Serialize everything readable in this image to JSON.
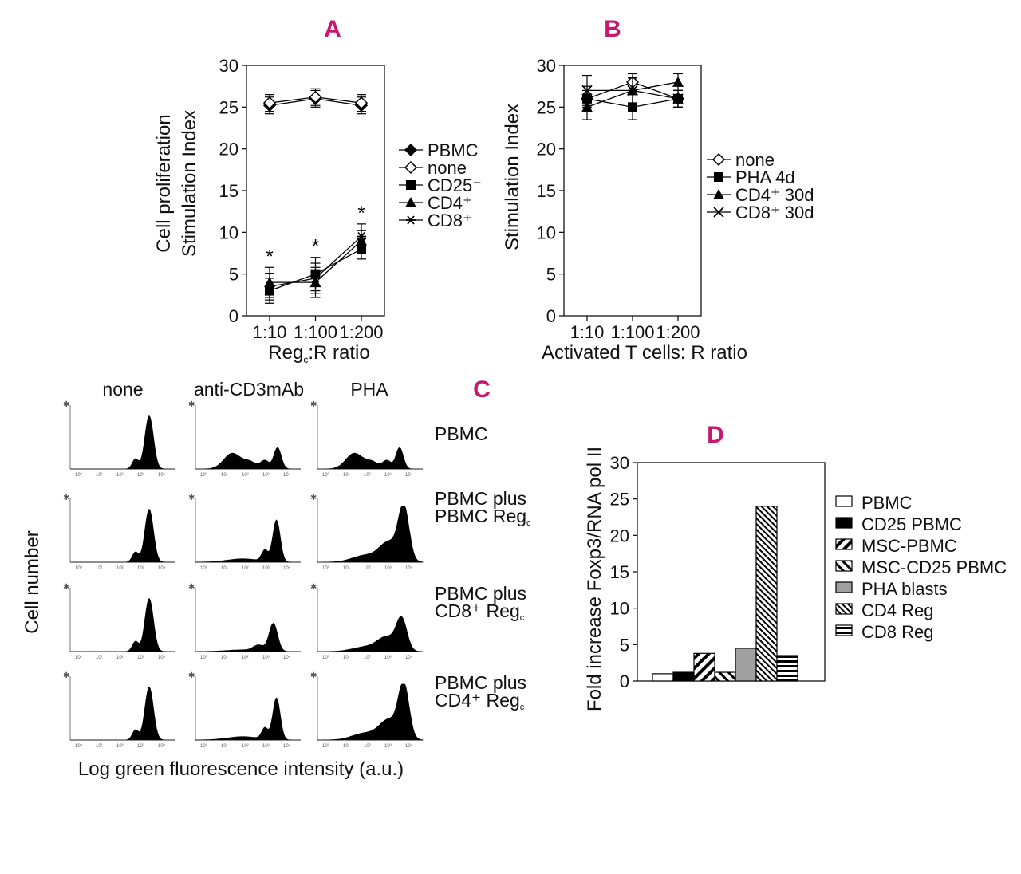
{
  "panels": {
    "A": {
      "letter": "A",
      "ylabel_line1": "Cell proliferation",
      "ylabel_line2": "Stimulation Index",
      "xlabel": "Reg",
      "xlabel_sub": "c",
      "xlabel_tail": ":R ratio",
      "significance_mark": "*"
    },
    "B": {
      "letter": "B",
      "ylabel": "Stimulation Index",
      "xlabel": "Activated T cells: R ratio"
    },
    "C": {
      "letter": "C",
      "columns": [
        "none",
        "anti-CD3mAb",
        "PHA"
      ],
      "rows": [
        {
          "line1": "PBMC",
          "line2": "",
          "sub": ""
        },
        {
          "line1": "PBMC plus",
          "line2": "PBMC Reg",
          "sub": "c"
        },
        {
          "line1": "PBMC plus",
          "line2": "CD8⁺ Reg",
          "sub": "c"
        },
        {
          "line1": "PBMC plus",
          "line2": "CD4⁺ Reg",
          "sub": "c"
        }
      ],
      "ylabel": "Cell number",
      "xlabel": "Log green fluorescence intensity (a.u.)",
      "axis_tick_labels": [
        "10⁰",
        "10¹",
        "10²",
        "10³",
        "10⁴"
      ]
    },
    "D": {
      "letter": "D",
      "ylabel": "Fold increase Foxp3/RNA pol II"
    }
  },
  "chart_data": [
    {
      "id": "A",
      "type": "line",
      "title": "A",
      "categories": [
        "1:10",
        "1:100",
        "1:200"
      ],
      "xlabel": "Regc:R ratio",
      "ylabel": "Cell proliferation Stimulation Index",
      "ylim": [
        0,
        30
      ],
      "yticks": [
        0,
        5,
        10,
        15,
        20,
        25,
        30
      ],
      "series": [
        {
          "name": "PBMC",
          "marker": "diamond-filled",
          "values": [
            25.2,
            26.0,
            25.2
          ],
          "errors": [
            1.0,
            1.0,
            1.0
          ]
        },
        {
          "name": "none",
          "marker": "diamond-open",
          "values": [
            25.5,
            26.2,
            25.5
          ],
          "errors": [
            1.0,
            1.0,
            1.0
          ]
        },
        {
          "name": "CD25⁻",
          "marker": "square",
          "values": [
            3.0,
            5.0,
            8.0
          ],
          "errors": [
            1.5,
            2.0,
            1.2
          ]
        },
        {
          "name": "CD4⁺",
          "marker": "triangle",
          "values": [
            4.0,
            4.0,
            9.0
          ],
          "errors": [
            1.8,
            1.8,
            1.2
          ]
        },
        {
          "name": "CD8⁺",
          "marker": "star",
          "values": [
            3.5,
            4.5,
            9.5
          ],
          "errors": [
            1.6,
            1.8,
            1.5
          ]
        }
      ],
      "annotations": [
        {
          "category": "1:10",
          "text": "*"
        },
        {
          "category": "1:100",
          "text": "*"
        },
        {
          "category": "1:200",
          "text": "*"
        }
      ],
      "legend": "right"
    },
    {
      "id": "B",
      "type": "line",
      "title": "B",
      "categories": [
        "1:10",
        "1:100",
        "1:200"
      ],
      "xlabel": "Activated T cells: R ratio",
      "ylabel": "Stimulation Index",
      "ylim": [
        0,
        30
      ],
      "yticks": [
        0,
        5,
        10,
        15,
        20,
        25,
        30
      ],
      "series": [
        {
          "name": "none",
          "marker": "diamond-open",
          "values": [
            26.0,
            28.0,
            26.0
          ],
          "errors": [
            1.0,
            1.0,
            1.0
          ]
        },
        {
          "name": "PHA 4d",
          "marker": "square",
          "values": [
            26.0,
            25.0,
            26.0
          ],
          "errors": [
            1.5,
            1.5,
            1.0
          ]
        },
        {
          "name": "CD4⁺ 30d",
          "marker": "triangle",
          "values": [
            25.0,
            27.0,
            28.0
          ],
          "errors": [
            1.5,
            1.5,
            1.0
          ]
        },
        {
          "name": "CD8⁺ 30d",
          "marker": "x",
          "values": [
            27.0,
            27.0,
            26.0
          ],
          "errors": [
            1.8,
            1.5,
            1.0
          ]
        }
      ],
      "legend": "right"
    },
    {
      "id": "D",
      "type": "bar",
      "title": "D",
      "ylabel": "Fold increase Foxp3/RNA pol II",
      "ylim": [
        0,
        30
      ],
      "yticks": [
        0,
        5,
        10,
        15,
        20,
        25,
        30
      ],
      "categories": [
        "PBMC",
        "CD25 PBMC",
        "MSC-PBMC",
        "MSC-CD25 PBMC",
        "PHA blasts",
        "CD4 Reg",
        "CD8 Reg"
      ],
      "values": [
        1.0,
        1.2,
        3.8,
        1.2,
        4.5,
        24.0,
        3.5
      ],
      "fills": [
        "white",
        "black",
        "diag-wide",
        "diag-narrow",
        "#a0a0a0",
        "diag-dense",
        "horizontal"
      ],
      "legend": "right"
    }
  ]
}
